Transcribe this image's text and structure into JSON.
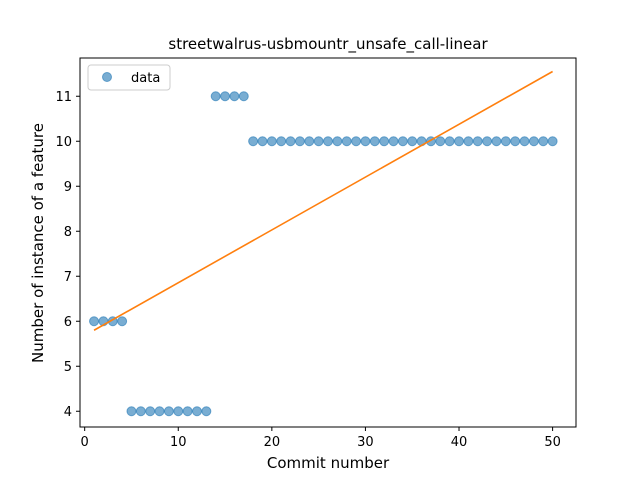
{
  "chart_data": {
    "type": "scatter",
    "title": "streetwalrus-usbmountr_unsafe_call-linear",
    "xlabel": "Commit number",
    "ylabel": "Number of instance of a feature",
    "xlim": [
      -0.5,
      52.5
    ],
    "ylim": [
      3.65,
      11.85
    ],
    "xticks": [
      0,
      10,
      20,
      30,
      40,
      50
    ],
    "yticks": [
      4,
      5,
      6,
      7,
      8,
      9,
      10,
      11
    ],
    "grid": false,
    "legend": {
      "position": "top-left",
      "entries": [
        "data"
      ]
    },
    "series": [
      {
        "name": "data",
        "kind": "points",
        "color": "#1f77b4",
        "x": [
          1,
          2,
          3,
          4,
          5,
          6,
          7,
          8,
          9,
          10,
          11,
          12,
          13,
          14,
          15,
          16,
          17,
          18,
          19,
          20,
          21,
          22,
          23,
          24,
          25,
          26,
          27,
          28,
          29,
          30,
          31,
          32,
          33,
          34,
          35,
          36,
          37,
          38,
          39,
          40,
          41,
          42,
          43,
          44,
          45,
          46,
          47,
          48,
          49,
          50
        ],
        "y": [
          6,
          6,
          6,
          6,
          4,
          4,
          4,
          4,
          4,
          4,
          4,
          4,
          4,
          11,
          11,
          11,
          11,
          10,
          10,
          10,
          10,
          10,
          10,
          10,
          10,
          10,
          10,
          10,
          10,
          10,
          10,
          10,
          10,
          10,
          10,
          10,
          10,
          10,
          10,
          10,
          10,
          10,
          10,
          10,
          10,
          10,
          10,
          10,
          10,
          10
        ]
      },
      {
        "kind": "fit-line",
        "color": "#ff7f0e",
        "x": [
          1,
          50
        ],
        "y": [
          5.8,
          11.55
        ]
      }
    ]
  }
}
